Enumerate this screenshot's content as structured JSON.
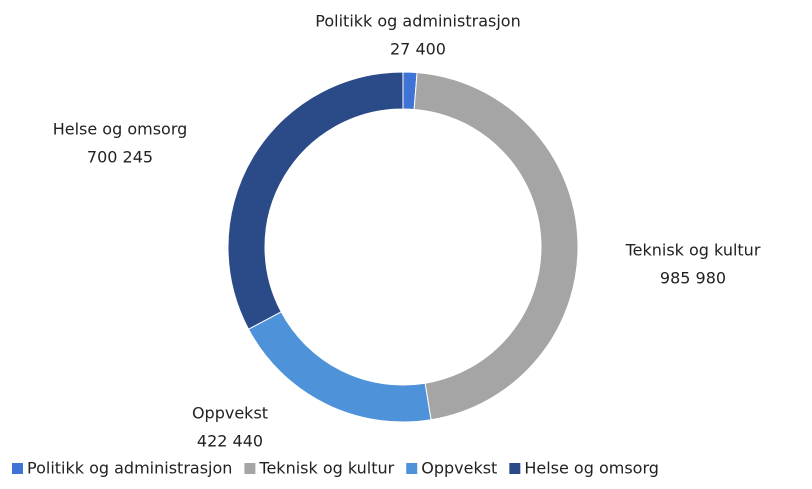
{
  "chart_data": {
    "type": "pie",
    "categories": [
      "Politikk og administrasjon",
      "Teknisk og kultur",
      "Oppvekst",
      "Helse og omsorg"
    ],
    "values": [
      27400,
      985980,
      422440,
      700245
    ],
    "value_labels": [
      "27 400",
      "985 980",
      "422 440",
      "700 245"
    ],
    "colors": [
      "#3f73d6",
      "#a5a5a5",
      "#4e93d9",
      "#2b4a88"
    ],
    "donut": true,
    "legend": "bottom"
  }
}
